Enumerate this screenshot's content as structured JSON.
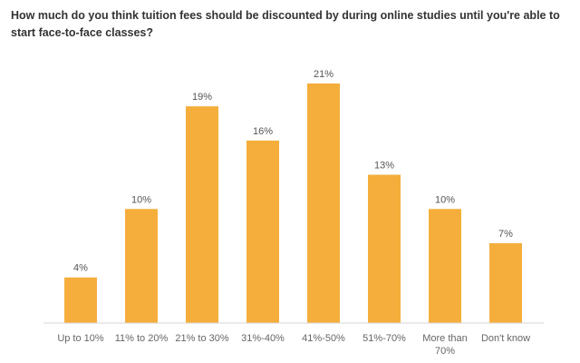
{
  "chart_data": {
    "type": "bar",
    "title": "How much do you think tuition fees should be discounted by during online studies until you're able to start face-to-face classes?",
    "categories": [
      "Up to 10%",
      "11% to 20%",
      "21% to 30%",
      "31%-40%",
      "41%-50%",
      "51%-70%",
      "More than 70%",
      "Don't know"
    ],
    "category_lines": [
      [
        "Up to 10%"
      ],
      [
        "11% to 20%"
      ],
      [
        "21% to 30%"
      ],
      [
        "31%-40%"
      ],
      [
        "41%-50%"
      ],
      [
        "51%-70%"
      ],
      [
        "More than",
        "70%"
      ],
      [
        "Don't know"
      ]
    ],
    "values": [
      4,
      10,
      19,
      16,
      21,
      13,
      10,
      7
    ],
    "value_labels": [
      "4%",
      "10%",
      "19%",
      "16%",
      "21%",
      "13%",
      "10%",
      "7%"
    ],
    "unit": "%",
    "ylim": [
      0,
      21
    ],
    "grid": false,
    "bar_color": "#F5AE3C",
    "axis_color": "#D6D6D6"
  }
}
